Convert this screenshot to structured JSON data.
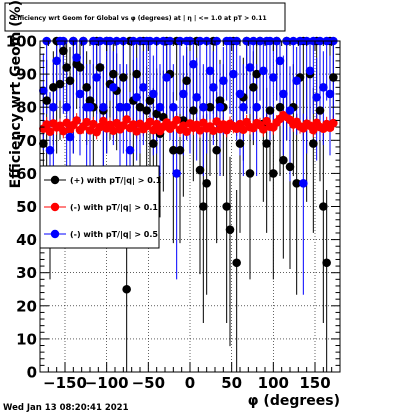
{
  "chart_data": {
    "type": "scatter",
    "title": "Efficiency wrt Geom for Global vs φ (degrees) at | η | <= 1.0 at pT > 0.11",
    "xlabel": "φ (degrees)",
    "ylabel": "Efficiency wrt Geom (%)",
    "xlim": [
      -180,
      180
    ],
    "ylim": [
      0,
      100
    ],
    "x_ticks": [
      -150,
      -100,
      -50,
      0,
      50,
      100,
      150
    ],
    "x_tick_labels": [
      "−150",
      "−100",
      "−50",
      "0",
      "50",
      "100",
      "150"
    ],
    "y_ticks": [
      0,
      10,
      20,
      30,
      40,
      50,
      60,
      70,
      80,
      90,
      100
    ],
    "y_tick_labels": [
      "0",
      "10",
      "20",
      "30",
      "40",
      "50",
      "60",
      "70",
      "80",
      "90",
      "100"
    ],
    "grid": true,
    "legend_position": "middle-left",
    "timestamp": "Wed Jan 13 08:20:41 2021",
    "series": [
      {
        "name": "(+) with pT/|q| > 0.1",
        "color": "#000000",
        "points": [
          [
            -176,
            69
          ],
          [
            -172,
            82
          ],
          [
            -168,
            60
          ],
          [
            -164,
            86
          ],
          [
            -160,
            100
          ],
          [
            -156,
            87
          ],
          [
            -152,
            97
          ],
          [
            -148,
            92
          ],
          [
            -144,
            88
          ],
          [
            -140,
            100
          ],
          [
            -136,
            93
          ],
          [
            -132,
            92
          ],
          [
            -128,
            100
          ],
          [
            -124,
            86
          ],
          [
            -120,
            82
          ],
          [
            -116,
            80
          ],
          [
            -112,
            100
          ],
          [
            -108,
            92
          ],
          [
            -104,
            79
          ],
          [
            -100,
            100
          ],
          [
            -96,
            87
          ],
          [
            -92,
            90
          ],
          [
            -88,
            85
          ],
          [
            -84,
            80
          ],
          [
            -80,
            89
          ],
          [
            -76,
            25
          ],
          [
            -72,
            100
          ],
          [
            -68,
            82
          ],
          [
            -64,
            90
          ],
          [
            -60,
            80
          ],
          [
            -56,
            100
          ],
          [
            -52,
            79
          ],
          [
            -48,
            82
          ],
          [
            -44,
            69
          ],
          [
            -40,
            78
          ],
          [
            -36,
            72
          ],
          [
            -32,
            77
          ],
          [
            -28,
            100
          ],
          [
            -24,
            90
          ],
          [
            -20,
            67
          ],
          [
            -16,
            100
          ],
          [
            -12,
            67
          ],
          [
            -8,
            76
          ],
          [
            -4,
            88
          ],
          [
            0,
            100
          ],
          [
            4,
            79
          ],
          [
            8,
            100
          ],
          [
            12,
            61
          ],
          [
            16,
            50
          ],
          [
            20,
            57
          ],
          [
            24,
            80
          ],
          [
            28,
            100
          ],
          [
            32,
            67
          ],
          [
            36,
            82
          ],
          [
            40,
            80
          ],
          [
            44,
            50
          ],
          [
            48,
            43
          ],
          [
            52,
            100
          ],
          [
            56,
            33
          ],
          [
            60,
            69
          ],
          [
            64,
            83
          ],
          [
            68,
            100
          ],
          [
            72,
            60
          ],
          [
            76,
            86
          ],
          [
            80,
            90
          ],
          [
            84,
            100
          ],
          [
            88,
            75
          ],
          [
            92,
            69
          ],
          [
            96,
            79
          ],
          [
            100,
            60
          ],
          [
            104,
            100
          ],
          [
            108,
            80
          ],
          [
            112,
            64
          ],
          [
            116,
            100
          ],
          [
            120,
            62
          ],
          [
            124,
            80
          ],
          [
            128,
            57
          ],
          [
            132,
            89
          ],
          [
            136,
            100
          ],
          [
            140,
            75
          ],
          [
            144,
            90
          ],
          [
            148,
            69
          ],
          [
            152,
            100
          ],
          [
            156,
            79
          ],
          [
            160,
            50
          ],
          [
            164,
            33
          ],
          [
            168,
            100
          ],
          [
            172,
            89
          ]
        ]
      },
      {
        "name": "(-) with pT/|q| > 0.1",
        "color": "#ff0000",
        "points": [
          [
            -176,
            73.5
          ],
          [
            -172,
            74.8
          ],
          [
            -168,
            72.6
          ],
          [
            -164,
            75.1
          ],
          [
            -160,
            73.9
          ],
          [
            -156,
            74.4
          ],
          [
            -152,
            72.8
          ],
          [
            -148,
            75.3
          ],
          [
            -144,
            73.2
          ],
          [
            -140,
            74.6
          ],
          [
            -136,
            76.0
          ],
          [
            -132,
            73.1
          ],
          [
            -128,
            74.2
          ],
          [
            -124,
            75.5
          ],
          [
            -120,
            73.0
          ],
          [
            -116,
            74.9
          ],
          [
            -112,
            72.5
          ],
          [
            -108,
            74.0
          ],
          [
            -104,
            75.8
          ],
          [
            -100,
            73.6
          ],
          [
            -96,
            74.7
          ],
          [
            -92,
            72.9
          ],
          [
            -88,
            75.2
          ],
          [
            -84,
            73.3
          ],
          [
            -80,
            74.5
          ],
          [
            -76,
            76.3
          ],
          [
            -72,
            73.7
          ],
          [
            -68,
            74.8
          ],
          [
            -64,
            72.7
          ],
          [
            -60,
            75.0
          ],
          [
            -56,
            73.4
          ],
          [
            -52,
            74.3
          ],
          [
            -48,
            75.6
          ],
          [
            -44,
            73.1
          ],
          [
            -40,
            74.9
          ],
          [
            -36,
            72.8
          ],
          [
            -32,
            74.1
          ],
          [
            -28,
            75.4
          ],
          [
            -24,
            73.5
          ],
          [
            -20,
            74.6
          ],
          [
            -16,
            76.1
          ],
          [
            -12,
            73.2
          ],
          [
            -8,
            74.4
          ],
          [
            -4,
            72.6
          ],
          [
            0,
            75.1
          ],
          [
            4,
            73.8
          ],
          [
            8,
            74.7
          ],
          [
            12,
            73.0
          ],
          [
            16,
            75.3
          ],
          [
            20,
            73.6
          ],
          [
            24,
            74.2
          ],
          [
            28,
            72.9
          ],
          [
            32,
            75.7
          ],
          [
            36,
            73.4
          ],
          [
            40,
            74.8
          ],
          [
            44,
            73.1
          ],
          [
            48,
            75.0
          ],
          [
            52,
            74.3
          ],
          [
            56,
            73.5
          ],
          [
            60,
            74.9
          ],
          [
            64,
            73.2
          ],
          [
            68,
            75.5
          ],
          [
            72,
            74.0
          ],
          [
            76,
            73.7
          ],
          [
            80,
            75.2
          ],
          [
            84,
            74.6
          ],
          [
            88,
            73.3
          ],
          [
            92,
            75.8
          ],
          [
            96,
            74.1
          ],
          [
            100,
            73.9
          ],
          [
            104,
            75.4
          ],
          [
            108,
            76.5
          ],
          [
            112,
            77.6
          ],
          [
            116,
            77.1
          ],
          [
            120,
            76.2
          ],
          [
            124,
            74.8
          ],
          [
            128,
            75.6
          ],
          [
            132,
            74.2
          ],
          [
            136,
            73.6
          ],
          [
            140,
            75.0
          ],
          [
            144,
            74.4
          ],
          [
            148,
            73.1
          ],
          [
            152,
            75.3
          ],
          [
            156,
            74.0
          ],
          [
            160,
            73.5
          ],
          [
            164,
            74.9
          ],
          [
            168,
            73.8
          ],
          [
            172,
            75.2
          ]
        ]
      },
      {
        "name": "(-) with pT/|q| > 0.5",
        "color": "#0000ff",
        "points": [
          [
            -176,
            85
          ],
          [
            -172,
            100
          ],
          [
            -168,
            67
          ],
          [
            -164,
            80
          ],
          [
            -160,
            94
          ],
          [
            -156,
            100
          ],
          [
            -152,
            100
          ],
          [
            -148,
            80
          ],
          [
            -144,
            71
          ],
          [
            -140,
            100
          ],
          [
            -136,
            95
          ],
          [
            -132,
            84
          ],
          [
            -128,
            100
          ],
          [
            -124,
            80
          ],
          [
            -120,
            80
          ],
          [
            -116,
            100
          ],
          [
            -112,
            89
          ],
          [
            -108,
            100
          ],
          [
            -104,
            80
          ],
          [
            -100,
            100
          ],
          [
            -96,
            100
          ],
          [
            -92,
            86
          ],
          [
            -88,
            100
          ],
          [
            -84,
            80
          ],
          [
            -80,
            100
          ],
          [
            -76,
            80
          ],
          [
            -72,
            67
          ],
          [
            -68,
            100
          ],
          [
            -64,
            83
          ],
          [
            -60,
            100
          ],
          [
            -56,
            86
          ],
          [
            -52,
            100
          ],
          [
            -48,
            100
          ],
          [
            -44,
            84
          ],
          [
            -40,
            100
          ],
          [
            -36,
            80
          ],
          [
            -32,
            100
          ],
          [
            -28,
            89
          ],
          [
            -24,
            100
          ],
          [
            -20,
            80
          ],
          [
            -16,
            60
          ],
          [
            -12,
            100
          ],
          [
            -8,
            84
          ],
          [
            -4,
            100
          ],
          [
            0,
            100
          ],
          [
            4,
            93
          ],
          [
            8,
            83
          ],
          [
            12,
            100
          ],
          [
            16,
            80
          ],
          [
            20,
            100
          ],
          [
            24,
            91
          ],
          [
            28,
            86
          ],
          [
            32,
            100
          ],
          [
            36,
            80
          ],
          [
            40,
            88
          ],
          [
            44,
            100
          ],
          [
            48,
            100
          ],
          [
            52,
            90
          ],
          [
            56,
            100
          ],
          [
            60,
            84
          ],
          [
            64,
            80
          ],
          [
            68,
            100
          ],
          [
            72,
            92
          ],
          [
            76,
            100
          ],
          [
            80,
            80
          ],
          [
            84,
            100
          ],
          [
            88,
            91
          ],
          [
            92,
            100
          ],
          [
            96,
            100
          ],
          [
            100,
            89
          ],
          [
            104,
            100
          ],
          [
            108,
            94
          ],
          [
            112,
            84
          ],
          [
            116,
            100
          ],
          [
            120,
            79
          ],
          [
            124,
            100
          ],
          [
            128,
            88
          ],
          [
            132,
            100
          ],
          [
            136,
            57
          ],
          [
            140,
            100
          ],
          [
            144,
            91
          ],
          [
            148,
            100
          ],
          [
            152,
            83
          ],
          [
            156,
            100
          ],
          [
            160,
            86
          ],
          [
            164,
            100
          ],
          [
            168,
            84
          ],
          [
            172,
            100
          ]
        ]
      }
    ]
  }
}
